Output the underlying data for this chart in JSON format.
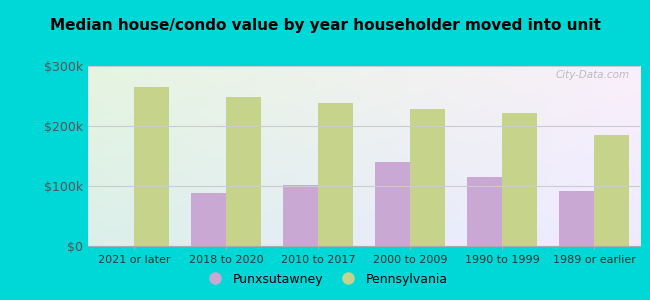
{
  "title": "Median house/condo value by year householder moved into unit",
  "categories": [
    "2021 or later",
    "2018 to 2020",
    "2010 to 2017",
    "2000 to 2009",
    "1990 to 1999",
    "1989 or earlier"
  ],
  "punxsutawney": [
    0,
    88000,
    102000,
    140000,
    115000,
    92000
  ],
  "pennsylvania": [
    265000,
    248000,
    238000,
    228000,
    222000,
    185000
  ],
  "bar_color_punx": "#c9a8d4",
  "bar_color_penn": "#c5d48a",
  "background_outer": "#00d8d8",
  "background_inner_top": "#e8f5e0",
  "background_inner_bottom": "#d8f0e8",
  "background_inner_right": "#cce8f0",
  "ylim": [
    0,
    300000
  ],
  "yticks": [
    0,
    100000,
    200000,
    300000
  ],
  "ytick_labels": [
    "$0",
    "$100k",
    "$200k",
    "$300k"
  ],
  "legend_punx": "Punxsutawney",
  "legend_penn": "Pennsylvania",
  "watermark": "City-Data.com"
}
